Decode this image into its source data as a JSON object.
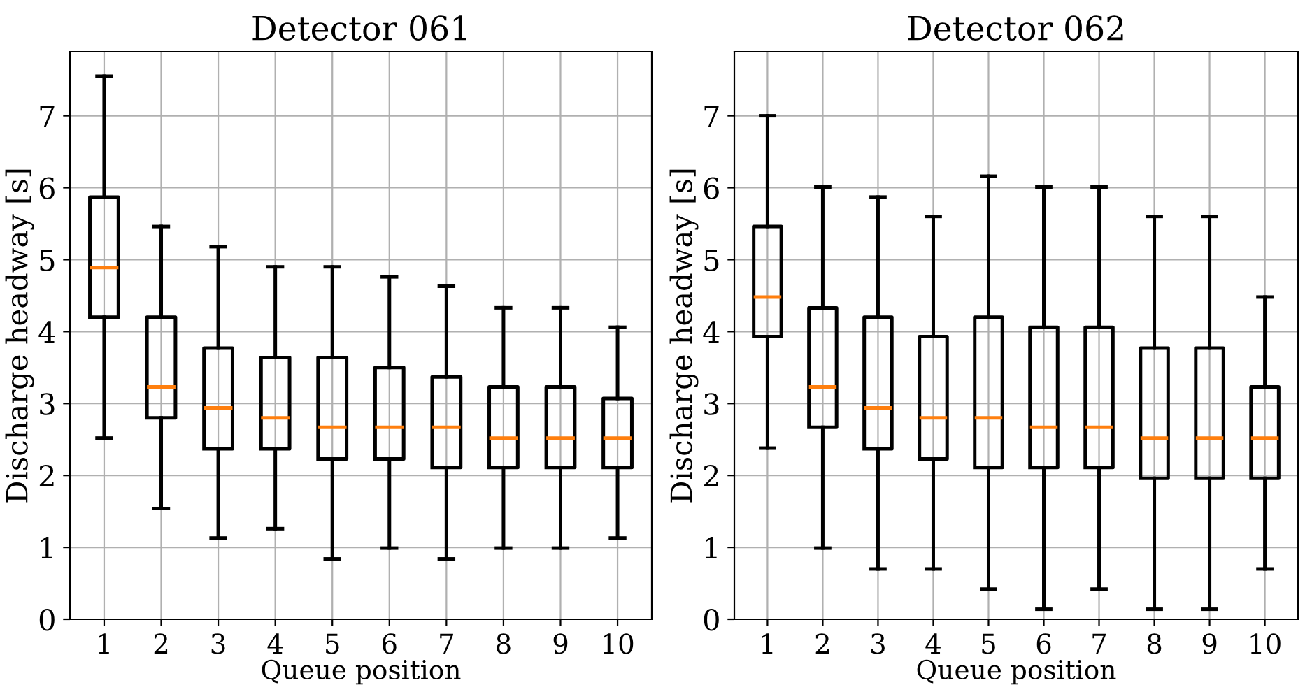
{
  "chart_data": [
    {
      "type": "box",
      "title": "Detector 061",
      "xlabel": "Queue position",
      "ylabel": "Discharge headway [s]",
      "categories": [
        "1",
        "2",
        "3",
        "4",
        "5",
        "6",
        "7",
        "8",
        "9",
        "10"
      ],
      "ylim": [
        0,
        7.89
      ],
      "yticks": [
        0,
        1,
        2,
        3,
        4,
        5,
        6,
        7
      ],
      "grid": true,
      "boxes": [
        {
          "low": 2.52,
          "q1": 4.2,
          "median": 4.89,
          "q3": 5.87,
          "high": 7.55
        },
        {
          "low": 1.54,
          "q1": 2.8,
          "median": 3.23,
          "q3": 4.2,
          "high": 5.46
        },
        {
          "low": 1.13,
          "q1": 2.37,
          "median": 2.94,
          "q3": 3.77,
          "high": 5.18
        },
        {
          "low": 1.26,
          "q1": 2.37,
          "median": 2.8,
          "q3": 3.64,
          "high": 4.9
        },
        {
          "low": 0.84,
          "q1": 2.23,
          "median": 2.67,
          "q3": 3.64,
          "high": 4.9
        },
        {
          "low": 0.99,
          "q1": 2.23,
          "median": 2.67,
          "q3": 3.5,
          "high": 4.76
        },
        {
          "low": 0.84,
          "q1": 2.11,
          "median": 2.67,
          "q3": 3.37,
          "high": 4.63
        },
        {
          "low": 0.99,
          "q1": 2.11,
          "median": 2.52,
          "q3": 3.23,
          "high": 4.33
        },
        {
          "low": 0.99,
          "q1": 2.11,
          "median": 2.52,
          "q3": 3.23,
          "high": 4.33
        },
        {
          "low": 1.13,
          "q1": 2.11,
          "median": 2.52,
          "q3": 3.07,
          "high": 4.06
        }
      ]
    },
    {
      "type": "box",
      "title": "Detector 062",
      "xlabel": "Queue position",
      "ylabel": "Discharge headway [s]",
      "categories": [
        "1",
        "2",
        "3",
        "4",
        "5",
        "6",
        "7",
        "8",
        "9",
        "10"
      ],
      "ylim": [
        0,
        7.89
      ],
      "yticks": [
        0,
        1,
        2,
        3,
        4,
        5,
        6,
        7
      ],
      "grid": true,
      "boxes": [
        {
          "low": 2.38,
          "q1": 3.93,
          "median": 4.48,
          "q3": 5.46,
          "high": 7.0
        },
        {
          "low": 0.99,
          "q1": 2.67,
          "median": 3.23,
          "q3": 4.33,
          "high": 6.01
        },
        {
          "low": 0.7,
          "q1": 2.37,
          "median": 2.94,
          "q3": 4.2,
          "high": 5.87
        },
        {
          "low": 0.7,
          "q1": 2.23,
          "median": 2.8,
          "q3": 3.93,
          "high": 5.6
        },
        {
          "low": 0.42,
          "q1": 2.11,
          "median": 2.8,
          "q3": 4.2,
          "high": 6.16
        },
        {
          "low": 0.14,
          "q1": 2.11,
          "median": 2.67,
          "q3": 4.06,
          "high": 6.01
        },
        {
          "low": 0.42,
          "q1": 2.11,
          "median": 2.67,
          "q3": 4.06,
          "high": 6.01
        },
        {
          "low": 0.14,
          "q1": 1.96,
          "median": 2.52,
          "q3": 3.77,
          "high": 5.6
        },
        {
          "low": 0.14,
          "q1": 1.96,
          "median": 2.52,
          "q3": 3.77,
          "high": 5.6
        },
        {
          "low": 0.7,
          "q1": 1.96,
          "median": 2.52,
          "q3": 3.23,
          "high": 4.48
        }
      ]
    }
  ]
}
